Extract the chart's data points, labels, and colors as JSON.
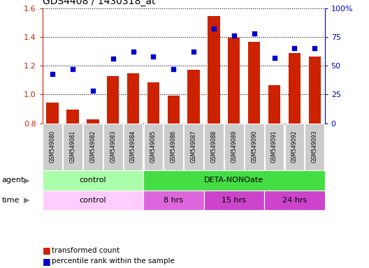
{
  "title": "GDS4408 / 1430318_at",
  "samples": [
    "GSM549080",
    "GSM549081",
    "GSM549082",
    "GSM549083",
    "GSM549084",
    "GSM549085",
    "GSM549086",
    "GSM549087",
    "GSM549088",
    "GSM549089",
    "GSM549090",
    "GSM549091",
    "GSM549092",
    "GSM549093"
  ],
  "transformed_count": [
    0.945,
    0.895,
    0.825,
    1.13,
    1.145,
    1.085,
    0.99,
    1.17,
    1.545,
    1.395,
    1.365,
    1.065,
    1.29,
    1.265
  ],
  "percentile_rank": [
    43,
    47,
    28,
    56,
    62,
    58,
    47,
    62,
    82,
    76,
    78,
    57,
    65,
    65
  ],
  "bar_color": "#cc2200",
  "dot_color": "#0000cc",
  "ylim_left": [
    0.8,
    1.6
  ],
  "ylim_right": [
    0,
    100
  ],
  "yticks_left": [
    0.8,
    1.0,
    1.2,
    1.4,
    1.6
  ],
  "yticks_right": [
    0,
    25,
    50,
    75,
    100
  ],
  "agent_groups": [
    {
      "label": "control",
      "start": 0,
      "end": 5,
      "color": "#aaffaa"
    },
    {
      "label": "DETA-NONOate",
      "start": 5,
      "end": 14,
      "color": "#44dd44"
    }
  ],
  "time_groups": [
    {
      "label": "control",
      "start": 0,
      "end": 5,
      "color": "#ffccff"
    },
    {
      "label": "8 hrs",
      "start": 5,
      "end": 8,
      "color": "#dd66dd"
    },
    {
      "label": "15 hrs",
      "start": 8,
      "end": 11,
      "color": "#cc44cc"
    },
    {
      "label": "24 hrs",
      "start": 11,
      "end": 14,
      "color": "#cc44cc"
    }
  ],
  "legend_bar_label": "transformed count",
  "legend_dot_label": "percentile rank within the sample",
  "agent_label": "agent",
  "time_label": "time",
  "background_color": "#ffffff",
  "plot_bg_color": "#ffffff",
  "tick_label_bg": "#dddddd",
  "grid_linestyle": "dotted"
}
